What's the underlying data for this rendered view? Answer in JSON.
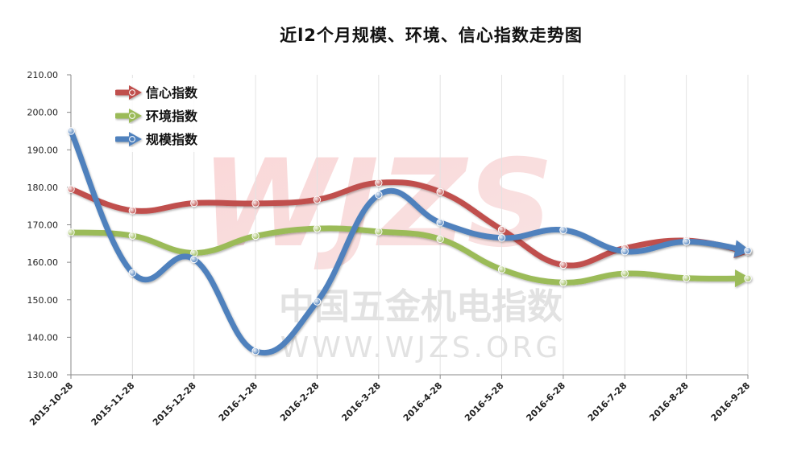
{
  "chart_data": {
    "type": "line",
    "title": "近l2个月规模、环境、信心指数走势图",
    "categories": [
      "2015-10-28",
      "2015-11-28",
      "2015-12-28",
      "2016-1-28",
      "2016-2-28",
      "2016-3-28",
      "2016-4-28",
      "2016-5-28",
      "2016-6-28",
      "2016-7-28",
      "2016-8-28",
      "2016-9-28"
    ],
    "ylim": [
      130,
      210
    ],
    "yticks": [
      "130.00",
      "140.00",
      "150.00",
      "160.00",
      "170.00",
      "180.00",
      "190.00",
      "200.00",
      "210.00"
    ],
    "grid": "vertical",
    "legend_position": "top-left",
    "series": [
      {
        "name": "信心指数",
        "color": "#c0504d",
        "values": [
          179.5,
          173.8,
          175.8,
          175.7,
          176.7,
          181.2,
          178.8,
          168.7,
          159.3,
          163.8,
          165.8,
          162.8
        ]
      },
      {
        "name": "环境指数",
        "color": "#9bbb59",
        "values": [
          168.0,
          167.1,
          162.5,
          167.0,
          169.0,
          168.2,
          166.2,
          158.1,
          154.6,
          157.0,
          155.8,
          155.7
        ]
      },
      {
        "name": "规模指数",
        "color": "#4f81bd",
        "values": [
          195.0,
          157.2,
          160.8,
          136.3,
          149.5,
          178.0,
          170.6,
          166.5,
          168.6,
          162.9,
          165.5,
          163.1
        ]
      }
    ]
  },
  "watermark": {
    "logo_text": "WJZS",
    "line1": "中国五金机电指数",
    "line2": "WWW.WJZS.ORG"
  }
}
